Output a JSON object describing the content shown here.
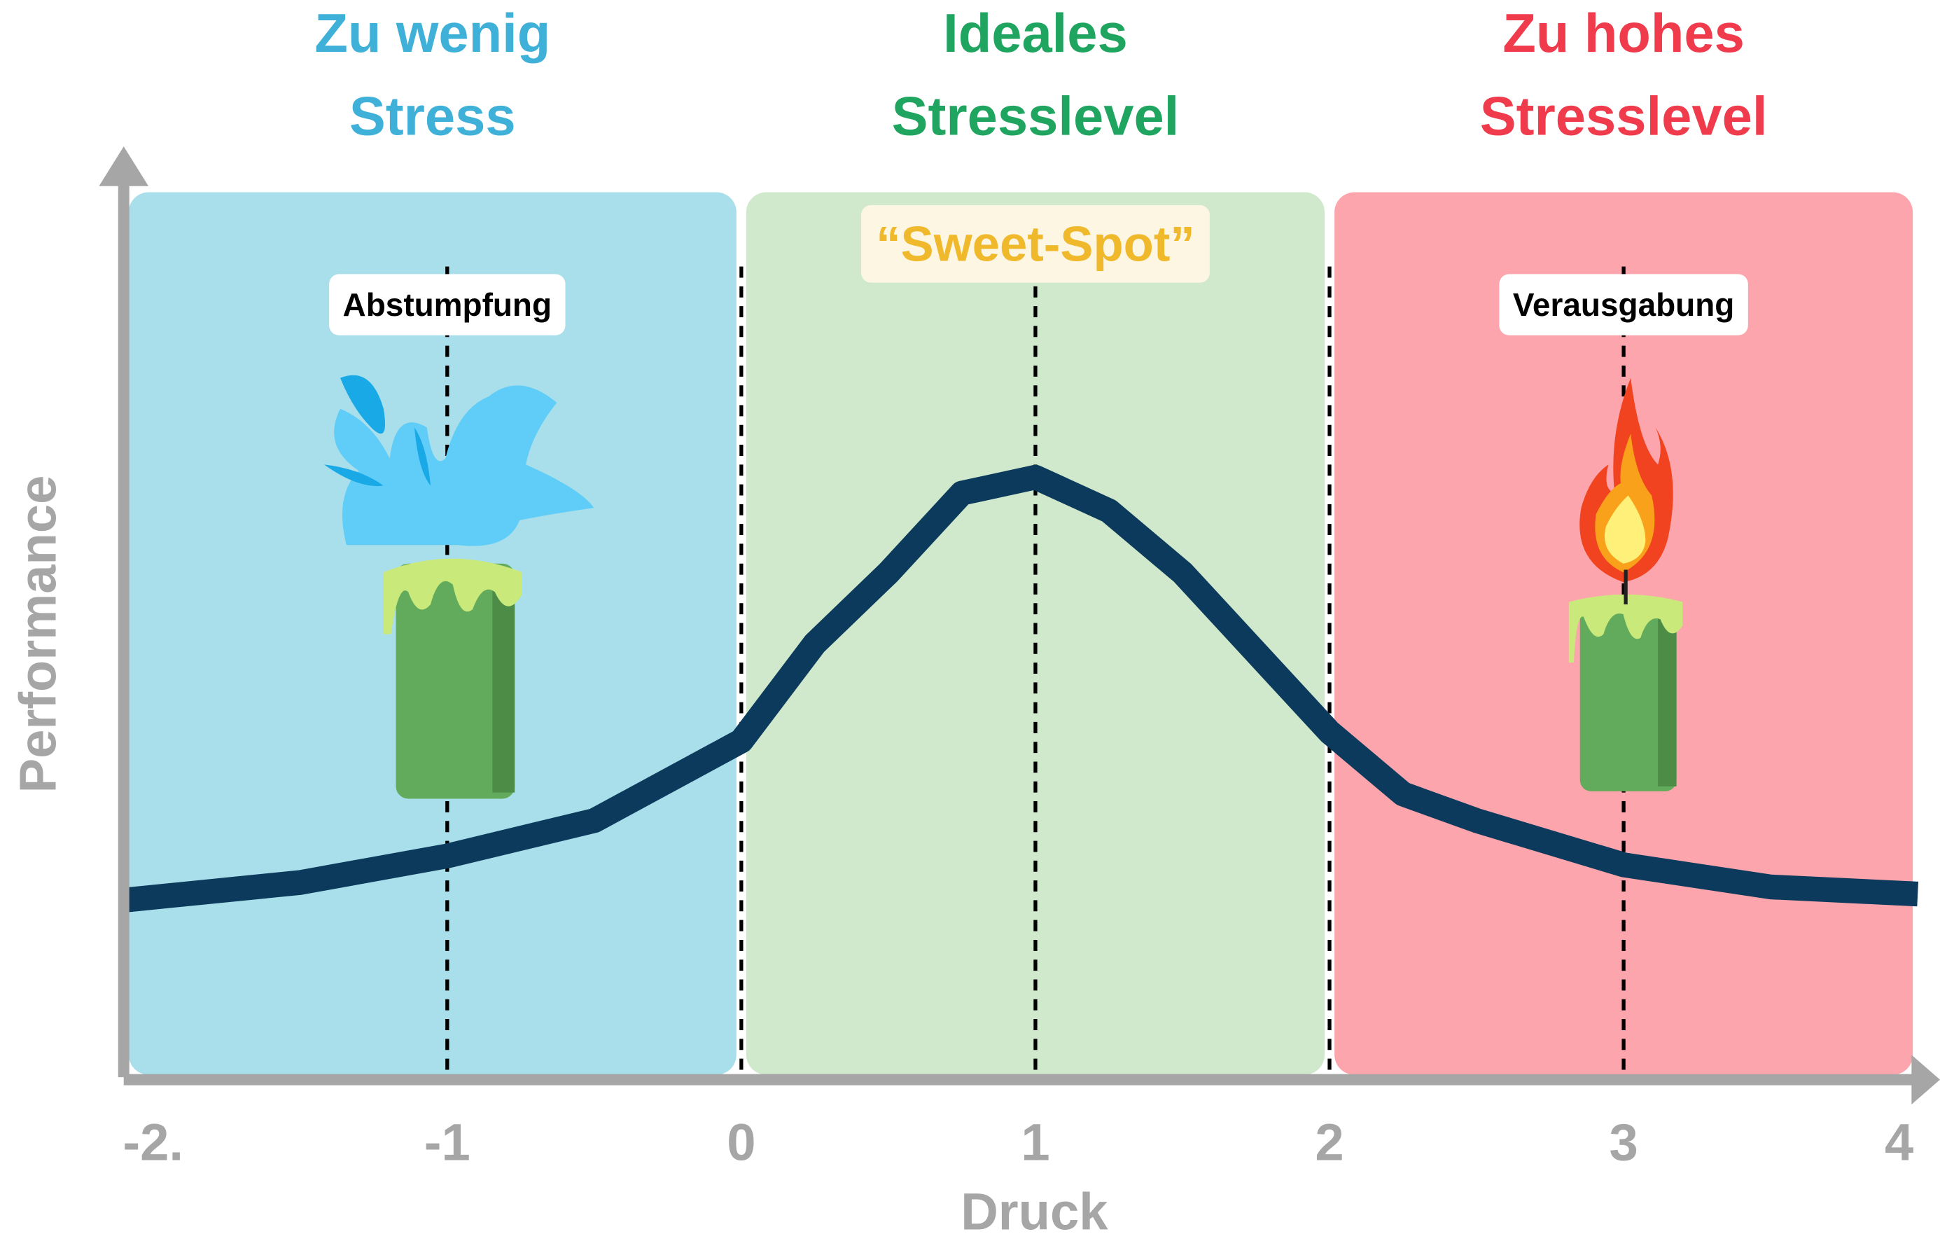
{
  "chart_data": {
    "type": "line",
    "x_label": "Druck",
    "y_label": "Performance",
    "xlim": [
      -2.1,
      4
    ],
    "xticks": [
      {
        "value": -2,
        "label": "-2."
      },
      -1,
      0,
      1,
      2,
      3,
      4
    ],
    "ylim": [
      0,
      1
    ],
    "zones": [
      {
        "label": [
          "Zu wenig",
          "Stress"
        ],
        "color": "#a8dfea",
        "text_color": "#3fb0d8",
        "x": [
          -2.1,
          0
        ]
      },
      {
        "label": [
          "Ideales",
          "Stresslevel"
        ],
        "color": "#d0e8cb",
        "text_color": "#1fa55f",
        "x": [
          0,
          2
        ]
      },
      {
        "label": [
          "Zu hohes",
          "Stresslevel"
        ],
        "color": "#fda5ad",
        "text_color": "#ef3b4c",
        "x": [
          2,
          4
        ]
      }
    ],
    "annotations": [
      {
        "text": "Abstumpfung",
        "x": -1,
        "color": "#000000",
        "box": "#ffffff"
      },
      {
        "text": "“Sweet-Spot”",
        "x": 1,
        "color": "#f0b92c",
        "box": "#fdf6e3"
      },
      {
        "text": "Verausgabung",
        "x": 3,
        "color": "#000000",
        "box": "#ffffff"
      }
    ],
    "series": [
      {
        "color": "#0c3a5c",
        "x": [
          -2.1,
          -1.5,
          -1,
          -0.5,
          0,
          0.25,
          0.5,
          0.75,
          1,
          1.25,
          1.5,
          1.75,
          2,
          2.25,
          2.5,
          3,
          3.5,
          4
        ],
        "values": [
          0.2,
          0.22,
          0.25,
          0.29,
          0.38,
          0.49,
          0.57,
          0.66,
          0.678,
          0.64,
          0.57,
          0.48,
          0.39,
          0.32,
          0.29,
          0.24,
          0.215,
          0.207
        ]
      }
    ]
  }
}
